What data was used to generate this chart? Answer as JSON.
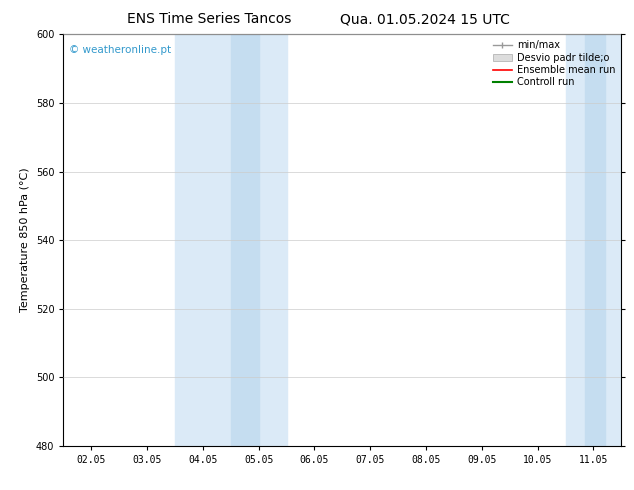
{
  "title_left": "ENS Time Series Tancos",
  "title_right": "Qua. 01.05.2024 15 UTC",
  "ylabel": "Temperature 850 hPa (°C)",
  "ylim": [
    480,
    600
  ],
  "yticks": [
    480,
    500,
    520,
    540,
    560,
    580,
    600
  ],
  "x_labels": [
    "02.05",
    "03.05",
    "04.05",
    "05.05",
    "06.05",
    "07.05",
    "08.05",
    "09.05",
    "10.05",
    "11.05"
  ],
  "x_values": [
    0,
    1,
    2,
    3,
    4,
    5,
    6,
    7,
    8,
    9
  ],
  "xlim": [
    -0.5,
    9.5
  ],
  "shade_bands": [
    {
      "x_start": 1.5,
      "x_end": 3.5,
      "color": "#dbeaf7"
    },
    {
      "x_start": 8.5,
      "x_end": 9.5,
      "color": "#dbeaf7"
    }
  ],
  "shade_inner_bands": [
    {
      "x_start": 2.5,
      "x_end": 3.0,
      "color": "#c5ddf0"
    },
    {
      "x_start": 8.85,
      "x_end": 9.2,
      "color": "#c5ddf0"
    }
  ],
  "watermark_text": "© weatheronline.pt",
  "watermark_color": "#3399cc",
  "bg_color": "#ffffff",
  "plot_bg_color": "#ffffff",
  "grid_color": "#cccccc",
  "spine_color": "#000000",
  "title_fontsize": 10,
  "tick_fontsize": 7,
  "ylabel_fontsize": 8,
  "legend_fontsize": 7
}
